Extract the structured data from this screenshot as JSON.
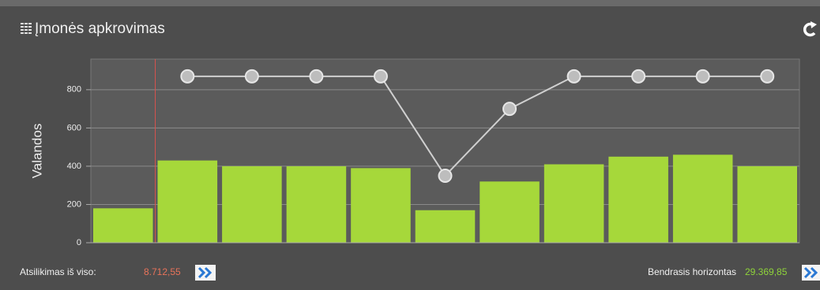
{
  "header": {
    "title": "Įmonės apkrovimas"
  },
  "chart_data": {
    "type": "combo",
    "y_label": "Valandos",
    "categories": [
      null,
      null,
      null,
      null,
      null,
      null,
      null,
      null,
      null,
      null,
      null
    ],
    "series": [
      {
        "type": "bar",
        "color": "#a6d83a",
        "values": [
          180,
          430,
          400,
          400,
          390,
          170,
          320,
          410,
          450,
          460,
          400
        ]
      },
      {
        "type": "line",
        "color": "#d0d0d0",
        "values": [
          null,
          870,
          870,
          870,
          870,
          350,
          700,
          870,
          870,
          870,
          870
        ]
      }
    ],
    "ylim": [
      0,
      960
    ],
    "yticks": [
      0,
      200,
      400,
      600,
      800
    ],
    "grid": true
  },
  "footer": {
    "left_label": "Atsilikimas iš viso:",
    "left_value": "8.712,55",
    "right_label": "Bendrasis horizontas",
    "right_value": "29.369,85"
  }
}
